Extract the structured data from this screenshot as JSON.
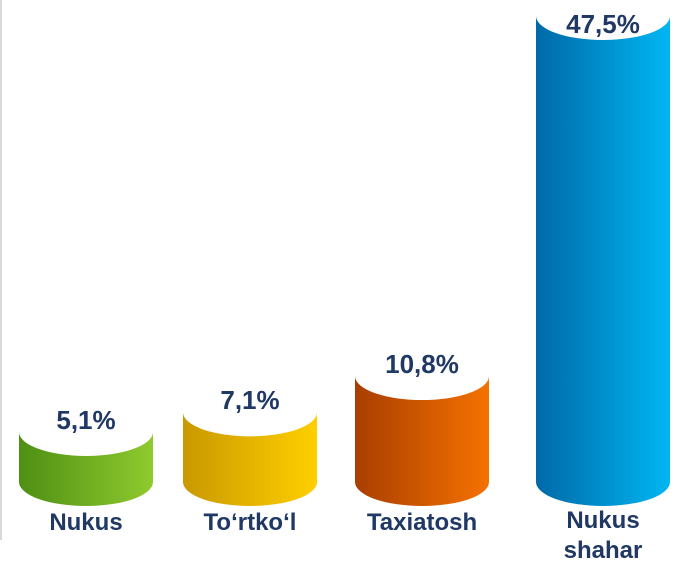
{
  "chart_data": {
    "type": "cylinder-bar",
    "categories": [
      "Nukus",
      "To‘rtko‘l",
      "Taxiatosh",
      "Nukus shahar"
    ],
    "values": [
      5.1,
      7.1,
      10.8,
      47.5
    ],
    "value_labels": [
      "5,1%",
      "7,1%",
      "10,8%",
      "47,5%"
    ],
    "colors": [
      [
        "#4f8f14",
        "#8fca2e"
      ],
      [
        "#c99800",
        "#ffcf00"
      ],
      [
        "#a83e00",
        "#f57200"
      ],
      [
        "#0069a8",
        "#00b6f2"
      ]
    ]
  }
}
